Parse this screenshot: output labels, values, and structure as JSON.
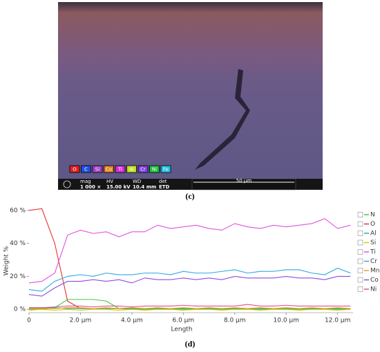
{
  "image": {
    "elements": [
      "O",
      "C",
      "Si",
      "Co",
      "Ti",
      "Al",
      "Cr",
      "Ni",
      "Fe"
    ],
    "info": [
      [
        "mag",
        "1 000 ×"
      ],
      [
        "HV",
        "15.00 kV"
      ],
      [
        "WD",
        "10.4 mm"
      ],
      [
        "det",
        "ETD"
      ]
    ],
    "scale_bar": "50 µm",
    "caption": "(c)"
  },
  "chart_data": {
    "type": "line",
    "x_label": "Length",
    "y_label": "Weight %",
    "x": [
      0,
      0.5,
      1,
      1.5,
      2,
      2.5,
      3,
      3.5,
      4,
      4.5,
      5,
      5.5,
      6,
      6.5,
      7,
      7.5,
      8,
      8.5,
      9,
      9.5,
      10,
      10.5,
      11,
      11.5,
      12,
      12.5
    ],
    "xlim": [
      0,
      12.6
    ],
    "ylim": [
      -2,
      62
    ],
    "xticks": [
      0,
      {
        "value": 2,
        "label": "2.0 µm"
      },
      {
        "value": 4,
        "label": "4.0 µm"
      },
      {
        "value": 6,
        "label": "6.0 µm"
      },
      {
        "value": 8,
        "label": "8.0 µm"
      },
      {
        "value": 10,
        "label": "10.0 µm"
      },
      {
        "value": 12,
        "label": "12.0 µm"
      }
    ],
    "yticks": [
      {
        "value": 0,
        "label": "0 %"
      },
      {
        "value": 20,
        "label": "20 %"
      },
      {
        "value": 40,
        "label": "40 %"
      },
      {
        "value": 60,
        "label": "60 %"
      }
    ],
    "legend": "right",
    "series": [
      {
        "name": "N",
        "color": "#3ccc3c",
        "values": [
          0,
          0,
          1,
          6,
          6,
          6,
          5,
          0.5,
          0,
          0,
          0,
          0,
          0,
          0,
          0,
          0,
          0,
          0,
          0,
          0,
          0,
          0,
          0,
          0,
          0,
          0
        ]
      },
      {
        "name": "O",
        "color": "#e8302a",
        "values": [
          60,
          61,
          40,
          5,
          0.5,
          0.5,
          0.5,
          0.5,
          0.5,
          0.5,
          0.5,
          0.5,
          0.5,
          0.5,
          0.5,
          0.5,
          0.5,
          0.5,
          0.5,
          0.5,
          0.5,
          0.5,
          0.5,
          0.5,
          0.5,
          0.5
        ]
      },
      {
        "name": "Al",
        "color": "#22b5a0",
        "values": [
          1,
          1,
          1,
          0.5,
          0.5,
          0.5,
          0.5,
          0.5,
          0.5,
          0.5,
          0.5,
          0.5,
          0.5,
          0.5,
          0.5,
          0.5,
          0.5,
          0.5,
          0.5,
          0.5,
          0.5,
          0.5,
          0.5,
          0.5,
          0.5,
          0.5
        ]
      },
      {
        "name": "Si",
        "color": "#d8c800",
        "values": [
          -0.5,
          0,
          -0.5,
          0,
          -0.5,
          0,
          0,
          -0.5,
          0,
          -0.5,
          0,
          0,
          -0.5,
          0,
          0,
          -0.5,
          0,
          0,
          -0.5,
          0,
          0,
          -0.5,
          0,
          0,
          -0.5,
          0
        ]
      },
      {
        "name": "Ti",
        "color": "#e050e0",
        "values": [
          16,
          17,
          22,
          45,
          48,
          46,
          47,
          44,
          47,
          47,
          51,
          49,
          50,
          51,
          49,
          48,
          52,
          50,
          49,
          51,
          50,
          51,
          52,
          55,
          49,
          51
        ]
      },
      {
        "name": "Cr",
        "color": "#2aa8e0",
        "values": [
          12,
          11,
          17,
          20,
          21,
          20,
          22,
          21,
          21,
          22,
          22,
          21,
          23,
          22,
          22,
          23,
          24,
          22,
          23,
          23,
          24,
          24,
          22,
          21,
          25,
          22
        ]
      },
      {
        "name": "Mn",
        "color": "#e89a20",
        "values": [
          0.5,
          0.5,
          0.5,
          1,
          1,
          0.5,
          1,
          0.5,
          1,
          0.5,
          1,
          0.5,
          1,
          0.5,
          1,
          0.5,
          1,
          0.5,
          1,
          0.5,
          1,
          0.5,
          1,
          0.5,
          1,
          0.5
        ]
      },
      {
        "name": "Co",
        "color": "#8a4ae0",
        "values": [
          9,
          8,
          13,
          17,
          17,
          18,
          17,
          18,
          16,
          19,
          18,
          18,
          19,
          18,
          19,
          18,
          20,
          19,
          19,
          19,
          20,
          19,
          19,
          18,
          20,
          20
        ]
      },
      {
        "name": "Ni",
        "color": "#e0508a",
        "values": [
          1,
          1,
          1.5,
          2,
          2,
          1.5,
          2,
          2,
          1.5,
          2,
          2,
          2,
          2.5,
          2,
          2,
          2,
          2,
          3,
          2,
          2,
          2.5,
          2,
          2,
          2,
          2,
          2
        ]
      }
    ],
    "caption": "(d)"
  }
}
